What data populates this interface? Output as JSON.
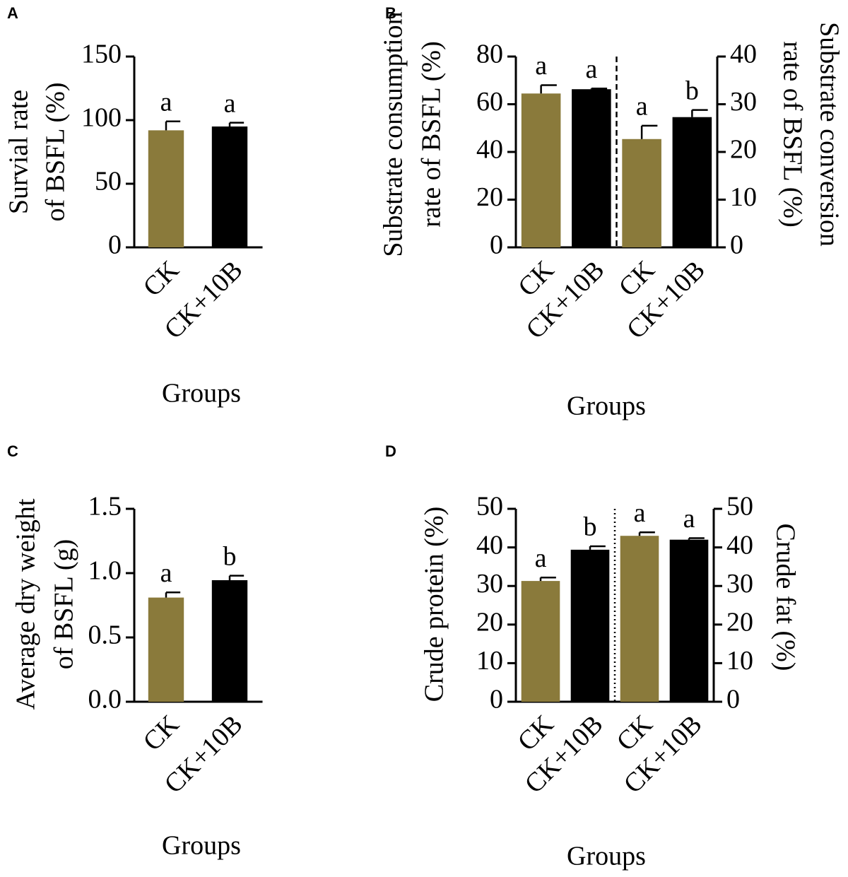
{
  "chart_data": [
    {
      "type": "bar",
      "panel": "A",
      "ylabel": [
        "Survial rate",
        "of BSFL (%)"
      ],
      "xlabel": "Groups",
      "categories": [
        "CK",
        "CK+10B"
      ],
      "values": [
        92,
        95
      ],
      "errors": [
        7,
        3
      ],
      "annotations": [
        "a",
        "a"
      ],
      "colors": [
        "#8a7a3b",
        "#000000"
      ],
      "ylim": [
        0,
        150
      ],
      "yticks": [
        0,
        50,
        100,
        150
      ]
    },
    {
      "type": "bar",
      "panel": "B",
      "ylabel": [
        "Substrate consumption",
        "rate of BSFL (%)"
      ],
      "y2label": [
        "Substrate conversion",
        "rate of BSFL  (%)"
      ],
      "xlabel": "Groups",
      "categories": [
        "CK",
        "CK+10B",
        "CK",
        "CK+10B"
      ],
      "series": [
        {
          "values": [
            64.5,
            66.3,
            null,
            null
          ],
          "errors": [
            3.5,
            0.3,
            null,
            null
          ]
        },
        {
          "axis": "y2",
          "values": [
            null,
            null,
            22.7,
            27.3
          ],
          "errors": [
            null,
            null,
            2.8,
            1.5
          ]
        }
      ],
      "annotations": [
        "a",
        "a",
        "a",
        "b"
      ],
      "colors": [
        "#8a7a3b",
        "#000000",
        "#8a7a3b",
        "#000000"
      ],
      "divider": "dashed",
      "ylim": [
        0,
        80
      ],
      "yticks": [
        0,
        20,
        40,
        60,
        80
      ],
      "y2lim": [
        0,
        40
      ],
      "y2ticks": [
        0,
        10,
        20,
        30,
        40
      ]
    },
    {
      "type": "bar",
      "panel": "C",
      "ylabel": [
        "Average dry weight",
        "of BSFL (g)"
      ],
      "xlabel": "Groups",
      "categories": [
        "CK",
        "CK+10B"
      ],
      "values": [
        0.81,
        0.945
      ],
      "errors": [
        0.04,
        0.035
      ],
      "annotations": [
        "a",
        "b"
      ],
      "colors": [
        "#8a7a3b",
        "#000000"
      ],
      "ylim": [
        0,
        1.5
      ],
      "yticks": [
        {
          "value": 0,
          "label": "0.0"
        },
        0.5,
        {
          "value": 1,
          "label": "1.0"
        },
        1.5
      ]
    },
    {
      "type": "bar",
      "panel": "D",
      "ylabel": [
        "Crude protein (%)"
      ],
      "y2label": [
        "Crude fat (%)"
      ],
      "xlabel": "Groups",
      "categories": [
        "CK",
        "CK+10B",
        "CK",
        "CK+10B"
      ],
      "series": [
        {
          "values": [
            31.3,
            39.4,
            null,
            null
          ],
          "errors": [
            0.9,
            0.9,
            null,
            null
          ]
        },
        {
          "axis": "y2",
          "values": [
            null,
            null,
            43,
            42
          ],
          "errors": [
            null,
            null,
            0.9,
            0.4
          ]
        }
      ],
      "annotations": [
        "a",
        "b",
        "a",
        "a"
      ],
      "colors": [
        "#8a7a3b",
        "#000000",
        "#8a7a3b",
        "#000000"
      ],
      "divider": "dotted",
      "ylim": [
        0,
        50
      ],
      "yticks": [
        0,
        10,
        20,
        30,
        40,
        50
      ],
      "y2lim": [
        0,
        50
      ],
      "y2ticks": [
        0,
        10,
        20,
        30,
        40,
        50
      ]
    }
  ]
}
